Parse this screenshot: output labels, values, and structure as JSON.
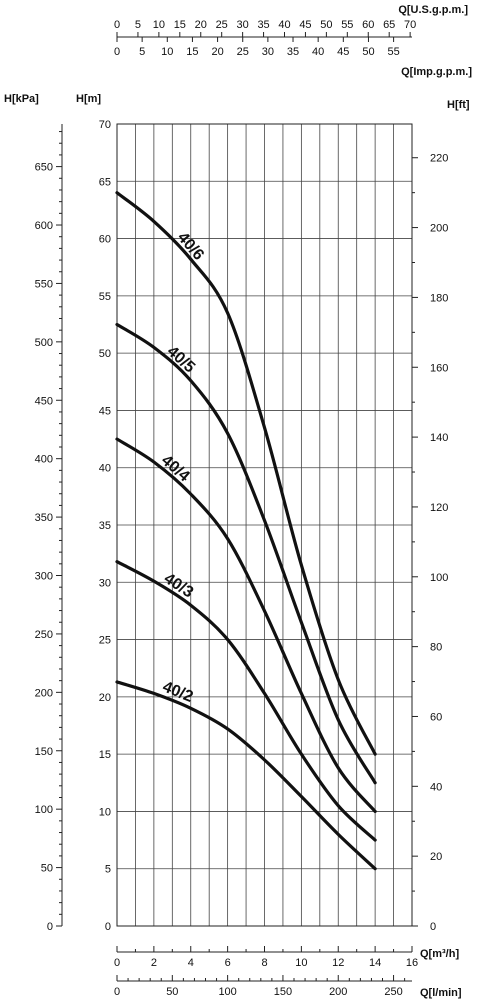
{
  "chart_data": {
    "type": "line",
    "x_unit": "Q[m³/h]",
    "x_range": [
      0,
      16
    ],
    "x_ticks": [
      0,
      2,
      4,
      6,
      8,
      10,
      12,
      14,
      16
    ],
    "y_unit": "H[m]",
    "y_range": [
      0,
      70
    ],
    "y_ticks": [
      0,
      5,
      10,
      15,
      20,
      25,
      30,
      35,
      40,
      45,
      50,
      55,
      60,
      65,
      70
    ],
    "grid": true,
    "secondary_axes": {
      "lmin": {
        "unit": "Q[l/min]",
        "ticks": [
          0,
          50,
          100,
          150,
          200,
          250
        ]
      },
      "usgpm": {
        "unit": "Q[U.S.g.p.m.]",
        "ticks": [
          0,
          5,
          10,
          15,
          20,
          25,
          30,
          35,
          40,
          45,
          50,
          55,
          60,
          65,
          70
        ]
      },
      "impgpm": {
        "unit": "Q[Imp.g.p.m.]",
        "ticks": [
          0,
          5,
          10,
          15,
          20,
          25,
          30,
          35,
          40,
          45,
          50,
          55
        ]
      },
      "kpa": {
        "unit": "H[kPa]",
        "ticks": [
          0,
          50,
          100,
          150,
          200,
          250,
          300,
          350,
          400,
          450,
          500,
          550,
          600,
          650
        ]
      },
      "ft": {
        "unit": "H[ft]",
        "ticks": [
          0,
          20,
          40,
          60,
          80,
          100,
          120,
          140,
          160,
          180,
          200,
          220
        ]
      }
    },
    "series": [
      {
        "name": "40/2",
        "x": [
          0,
          2,
          4,
          6,
          8,
          10,
          12,
          14
        ],
        "y": [
          21.3,
          20.3,
          19.0,
          17.2,
          14.5,
          11.3,
          8.0,
          5.0
        ]
      },
      {
        "name": "40/3",
        "x": [
          0,
          2,
          4,
          6,
          8,
          10,
          12,
          14
        ],
        "y": [
          31.8,
          30.1,
          28.0,
          25.0,
          20.3,
          15.0,
          10.5,
          7.5
        ]
      },
      {
        "name": "40/4",
        "x": [
          0,
          2,
          4,
          6,
          8,
          10,
          12,
          14
        ],
        "y": [
          42.5,
          40.5,
          37.7,
          33.8,
          27.5,
          20.3,
          13.8,
          10.0
        ]
      },
      {
        "name": "40/5",
        "x": [
          0,
          2,
          4,
          6,
          8,
          10,
          12,
          14
        ],
        "y": [
          52.5,
          50.5,
          47.6,
          43.0,
          35.4,
          26.5,
          18.0,
          12.5
        ]
      },
      {
        "name": "40/6",
        "x": [
          0,
          2,
          4,
          6,
          8,
          10,
          12,
          14
        ],
        "y": [
          64.0,
          61.5,
          58.2,
          53.5,
          43.5,
          31.5,
          21.5,
          15.0
        ]
      }
    ],
    "label_positions_x": [
      3.2,
      3.2,
      3.0,
      3.3,
      3.8
    ]
  }
}
